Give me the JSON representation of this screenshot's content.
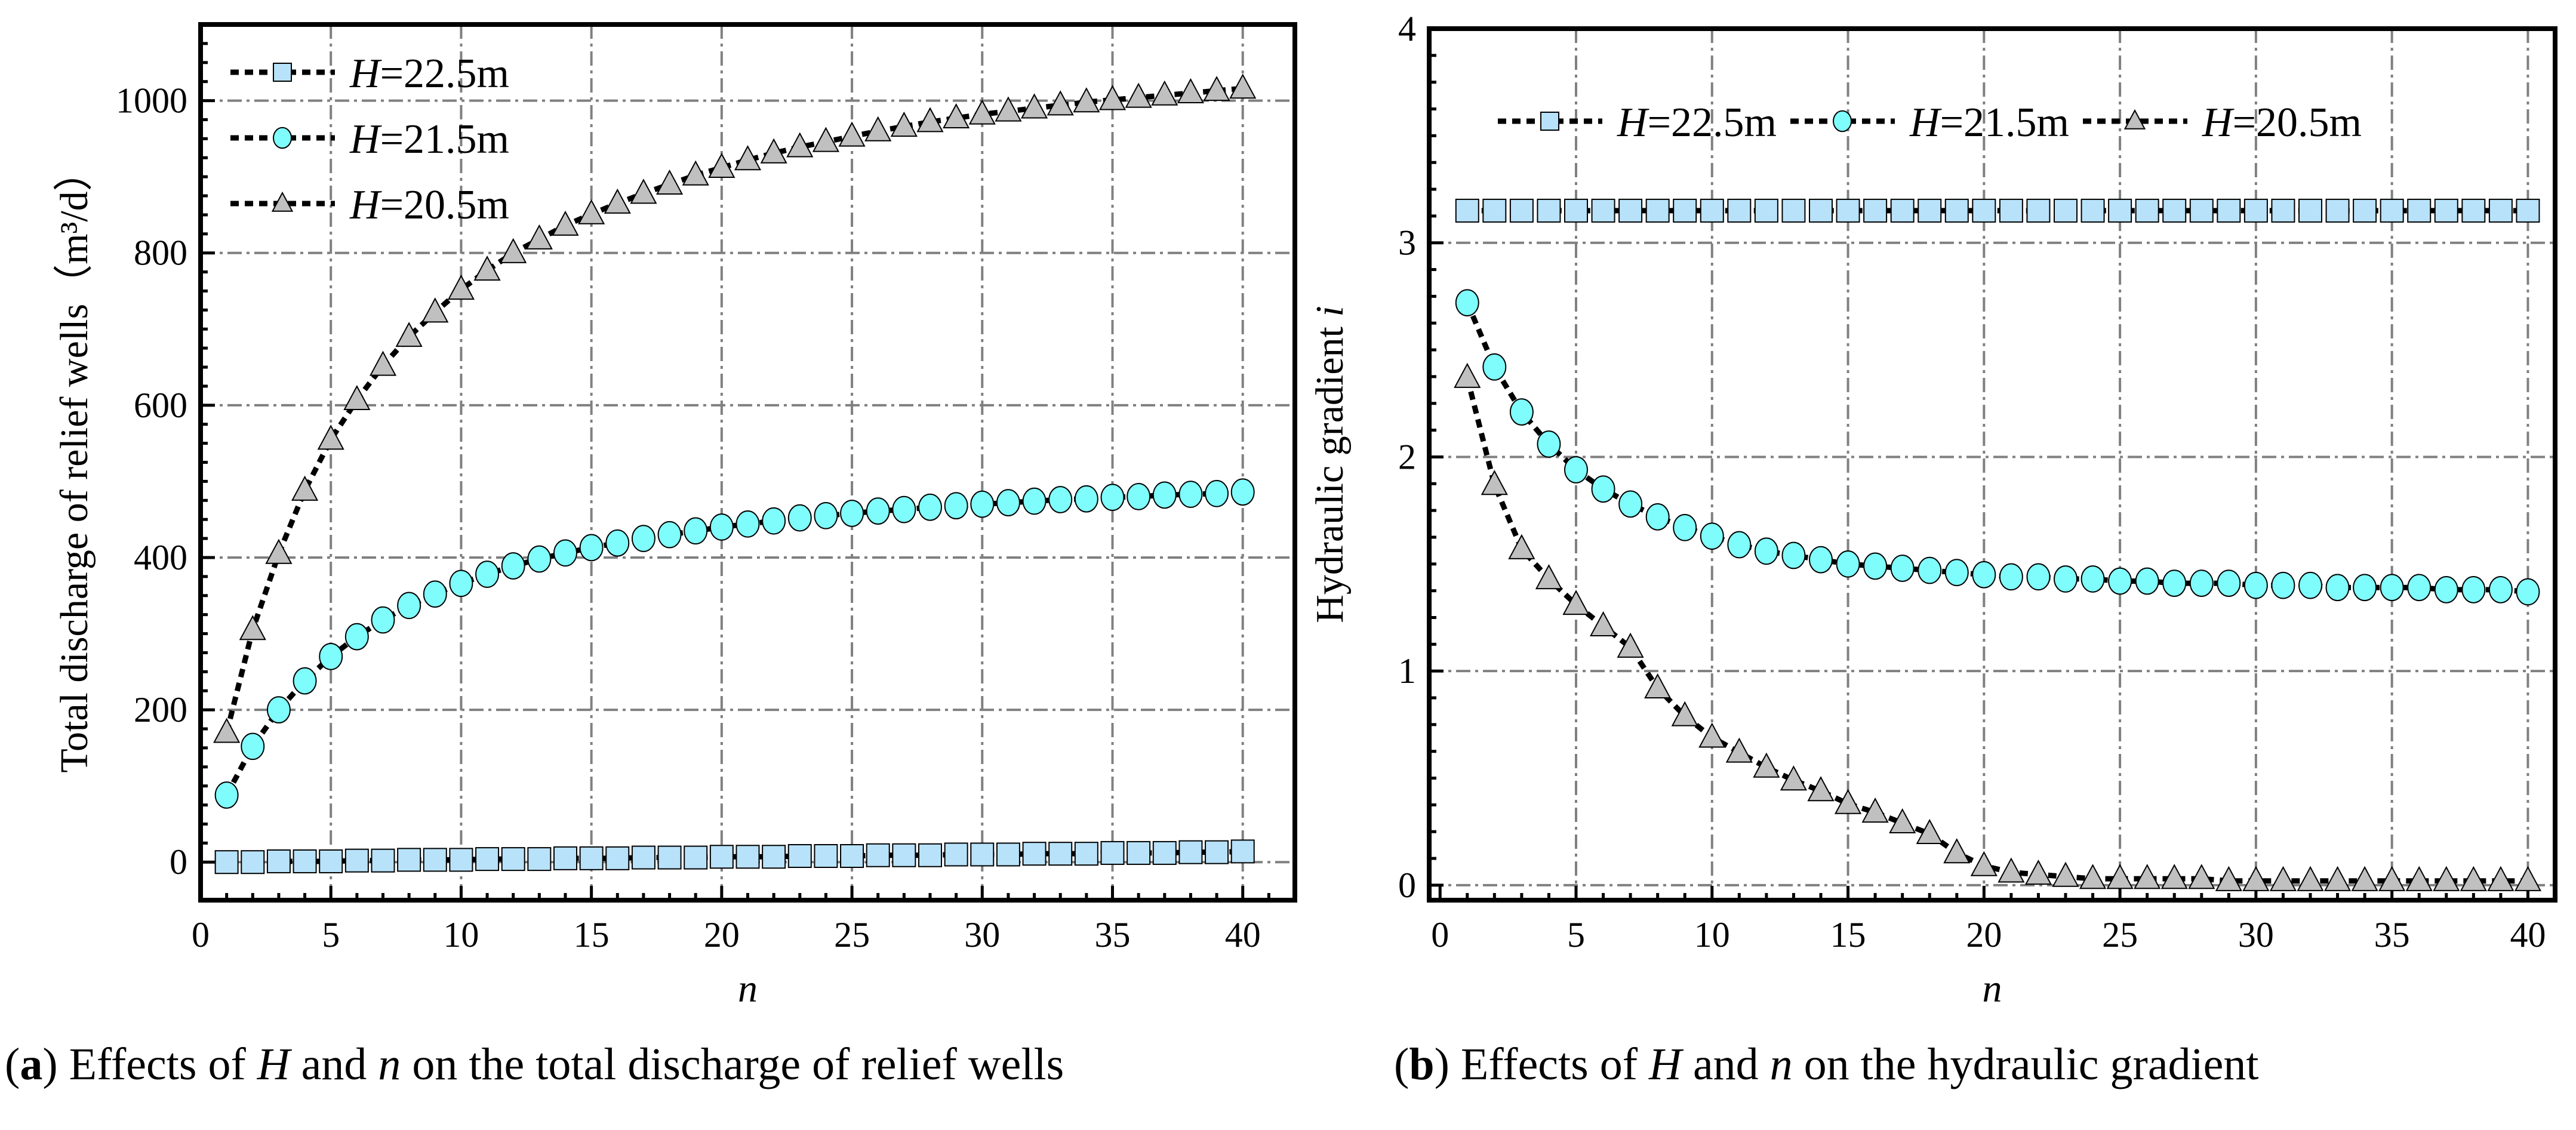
{
  "colors": {
    "square": "#b8e2fa",
    "circle": "#7ffcfc",
    "triangle": "#c0c0c0",
    "grid": "#808080"
  },
  "legend_labels": [
    {
      "var": "H",
      "rest": "=22.5m"
    },
    {
      "var": "H",
      "rest": "=21.5m"
    },
    {
      "var": "H",
      "rest": "=20.5m"
    }
  ],
  "captions": [
    {
      "letter": "a",
      "parts": [
        "Effects of ",
        "H",
        " and ",
        "n",
        " on the total discharge of relief wells"
      ]
    },
    {
      "letter": "b",
      "parts": [
        "Effects of ",
        "H",
        " and ",
        "n",
        " on the hydraulic gradient"
      ]
    }
  ],
  "chart_data": [
    {
      "type": "line",
      "title": "",
      "xlabel": "n",
      "ylabel": "Total discharge of relief wells（m³/d）",
      "xlim": [
        0,
        42
      ],
      "ylim": [
        -50,
        1100
      ],
      "xticks": [
        0,
        5,
        10,
        15,
        20,
        25,
        30,
        35,
        40
      ],
      "yticks": [
        0,
        200,
        400,
        600,
        800,
        1000
      ],
      "grid": true,
      "legend_placement": "top-left",
      "x": [
        1,
        2,
        3,
        4,
        5,
        6,
        7,
        8,
        9,
        10,
        11,
        12,
        13,
        14,
        15,
        16,
        17,
        18,
        19,
        20,
        21,
        22,
        23,
        24,
        25,
        26,
        27,
        28,
        29,
        30,
        31,
        32,
        33,
        34,
        35,
        36,
        37,
        38,
        39,
        40
      ],
      "series": [
        {
          "name": "H=22.5m",
          "marker": "square",
          "values": [
            0,
            0,
            1,
            1,
            1,
            2,
            2,
            3,
            3,
            3,
            4,
            4,
            4,
            5,
            5,
            5,
            6,
            6,
            6,
            7,
            7,
            7,
            8,
            8,
            8,
            9,
            9,
            9,
            10,
            10,
            10,
            11,
            11,
            11,
            12,
            12,
            12,
            13,
            13,
            14
          ]
        },
        {
          "name": "H=21.5m",
          "marker": "circle",
          "values": [
            88,
            152,
            200,
            238,
            270,
            296,
            318,
            337,
            352,
            366,
            378,
            389,
            398,
            406,
            413,
            419,
            425,
            430,
            435,
            440,
            444,
            448,
            452,
            455,
            458,
            461,
            463,
            466,
            468,
            470,
            472,
            474,
            476,
            477,
            479,
            480,
            482,
            483,
            484,
            486
          ]
        },
        {
          "name": "H=20.5m",
          "marker": "triangle",
          "values": [
            170,
            305,
            405,
            488,
            555,
            607,
            652,
            690,
            722,
            752,
            777,
            800,
            818,
            836,
            851,
            865,
            878,
            890,
            902,
            912,
            922,
            931,
            939,
            946,
            953,
            960,
            966,
            972,
            977,
            982,
            986,
            990,
            994,
            998,
            1001,
            1004,
            1007,
            1010,
            1013,
            1016
          ]
        }
      ]
    },
    {
      "type": "line",
      "title": "",
      "xlabel": "n",
      "ylabel": "Hydraulic gradient",
      "ylabel_var": "i",
      "xlim": [
        -0.4,
        41
      ],
      "ylim": [
        -0.07,
        4
      ],
      "xticks": [
        0,
        5,
        10,
        15,
        20,
        25,
        30,
        35,
        40
      ],
      "yticks": [
        0,
        1,
        2,
        3,
        4
      ],
      "grid": true,
      "legend_placement": "top",
      "x": [
        1,
        2,
        3,
        4,
        5,
        6,
        7,
        8,
        9,
        10,
        11,
        12,
        13,
        14,
        15,
        16,
        17,
        18,
        19,
        20,
        21,
        22,
        23,
        24,
        25,
        26,
        27,
        28,
        29,
        30,
        31,
        32,
        33,
        34,
        35,
        36,
        37,
        38,
        39,
        40
      ],
      "series": [
        {
          "name": "H=22.5m",
          "marker": "square",
          "values": [
            3.15,
            3.15,
            3.15,
            3.15,
            3.15,
            3.15,
            3.15,
            3.15,
            3.15,
            3.15,
            3.15,
            3.15,
            3.15,
            3.15,
            3.15,
            3.15,
            3.15,
            3.15,
            3.15,
            3.15,
            3.15,
            3.15,
            3.15,
            3.15,
            3.15,
            3.15,
            3.15,
            3.15,
            3.15,
            3.15,
            3.15,
            3.15,
            3.15,
            3.15,
            3.15,
            3.15,
            3.15,
            3.15,
            3.15,
            3.15
          ]
        },
        {
          "name": "H=21.5m",
          "marker": "circle",
          "values": [
            2.72,
            2.42,
            2.21,
            2.06,
            1.94,
            1.85,
            1.78,
            1.72,
            1.67,
            1.63,
            1.59,
            1.56,
            1.54,
            1.52,
            1.5,
            1.49,
            1.48,
            1.47,
            1.46,
            1.45,
            1.44,
            1.44,
            1.43,
            1.43,
            1.42,
            1.42,
            1.41,
            1.41,
            1.41,
            1.4,
            1.4,
            1.4,
            1.39,
            1.39,
            1.39,
            1.39,
            1.38,
            1.38,
            1.38,
            1.37
          ]
        },
        {
          "name": "H=20.5m",
          "marker": "triangle",
          "values": [
            2.37,
            1.87,
            1.57,
            1.43,
            1.31,
            1.21,
            1.11,
            0.92,
            0.79,
            0.69,
            0.62,
            0.55,
            0.49,
            0.44,
            0.38,
            0.34,
            0.29,
            0.24,
            0.15,
            0.09,
            0.06,
            0.05,
            0.04,
            0.03,
            0.03,
            0.03,
            0.03,
            0.03,
            0.02,
            0.02,
            0.02,
            0.02,
            0.02,
            0.02,
            0.02,
            0.02,
            0.02,
            0.02,
            0.02,
            0.02
          ]
        }
      ]
    }
  ]
}
